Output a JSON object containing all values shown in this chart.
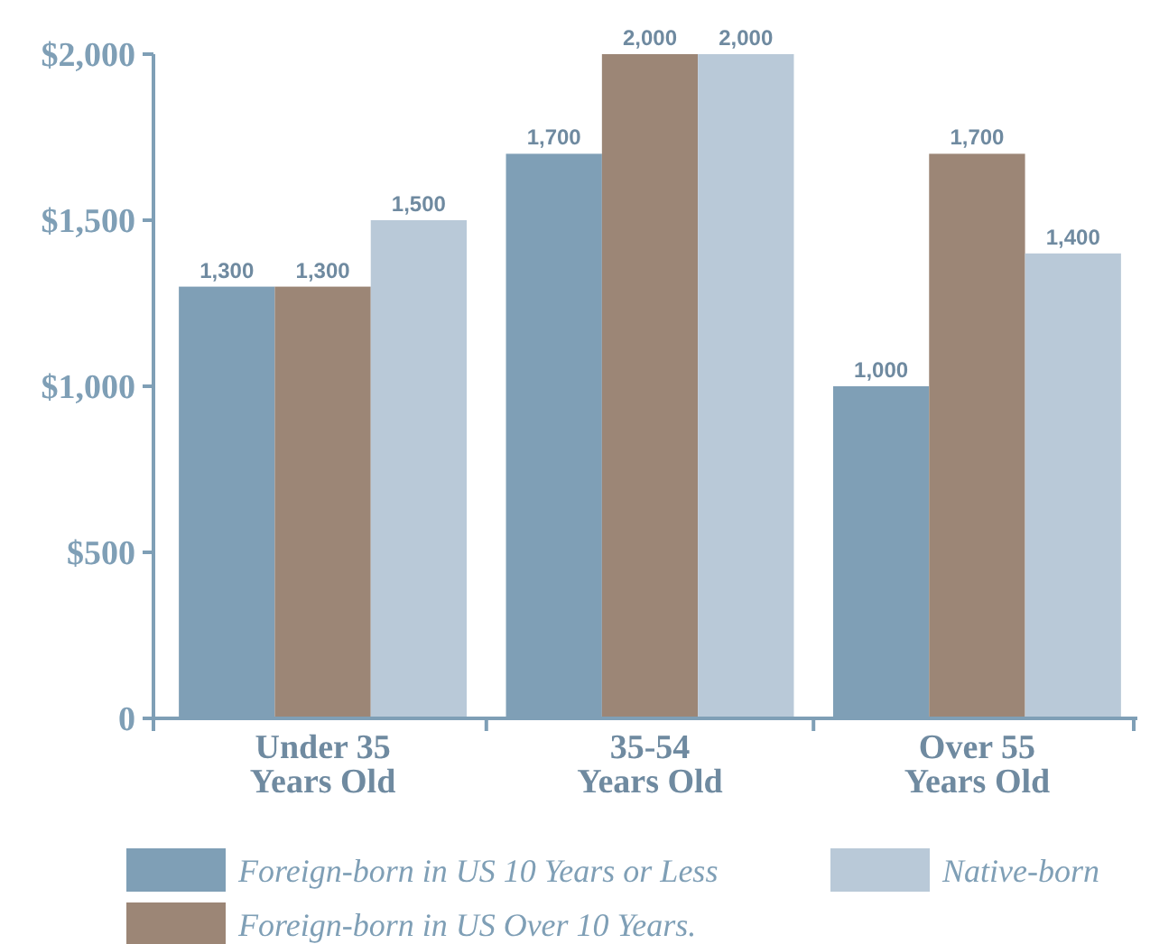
{
  "chart_data": {
    "type": "bar",
    "categories": [
      "Under 35\nYears Old",
      "35-54\nYears Old",
      "Over 55\nYears Old"
    ],
    "series": [
      {
        "name": "Foreign-born in US 10 Years or Less",
        "color": "#7f9fb6",
        "values": [
          1300,
          1700,
          1000
        ],
        "value_labels": [
          "1,300",
          "1,700",
          "1,000"
        ]
      },
      {
        "name": "Foreign-born in US Over 10 Years.",
        "color": "#9c8676",
        "values": [
          1300,
          2000,
          1700
        ],
        "value_labels": [
          "1,300",
          "2,000",
          "1,700"
        ]
      },
      {
        "name": "Native-born",
        "color": "#b9c9d8",
        "values": [
          1500,
          2000,
          1400
        ],
        "value_labels": [
          "1,500",
          "2,000",
          "1,400"
        ]
      }
    ],
    "ylim": [
      0,
      2000
    ],
    "yticks": [
      0,
      {
        "value": 500,
        "label": "$500"
      },
      {
        "value": 1000,
        "label": "$1,000"
      },
      {
        "value": 1500,
        "label": "$1,500"
      },
      {
        "value": 2000,
        "label": "$2,000"
      }
    ],
    "legend": "bottom",
    "grid": false
  }
}
